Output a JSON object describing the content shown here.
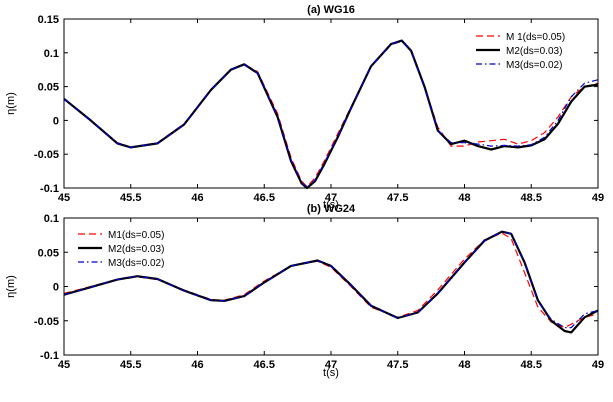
{
  "caption": "",
  "chart_data": [
    {
      "type": "line",
      "title": "(a) WG16",
      "xlabel": "t(s)",
      "ylabel": "η(m)",
      "xlim": [
        45,
        49
      ],
      "ylim": [
        -0.1,
        0.15
      ],
      "xticks": [
        45,
        45.5,
        46,
        46.5,
        47,
        47.5,
        48,
        48.5,
        49
      ],
      "xtick_labels": [
        "45",
        "45.5",
        "46",
        "46.5",
        "47",
        "47.5",
        "48",
        "48.5",
        "49"
      ],
      "yticks": [
        -0.1,
        -0.05,
        0,
        0.05,
        0.1,
        0.15
      ],
      "ytick_labels": [
        "-0.1",
        "-0.05",
        "0",
        "0.05",
        "0.1",
        "0.15"
      ],
      "legend_position": "top-right",
      "series": [
        {
          "name": "M 1(ds=0.05)",
          "color": "#ff0000",
          "dash": "7,4",
          "width": 1.2,
          "x": [
            45.0,
            45.2,
            45.4,
            45.5,
            45.7,
            45.9,
            46.1,
            46.25,
            46.35,
            46.45,
            46.6,
            46.7,
            46.78,
            46.82,
            46.88,
            46.95,
            47.05,
            47.15,
            47.3,
            47.45,
            47.53,
            47.6,
            47.7,
            47.8,
            47.9,
            48.0,
            48.1,
            48.2,
            48.3,
            48.4,
            48.5,
            48.6,
            48.7,
            48.8,
            48.9,
            49.0
          ],
          "y": [
            0.032,
            0.0,
            -0.033,
            -0.04,
            -0.033,
            -0.005,
            0.045,
            0.075,
            0.083,
            0.072,
            0.01,
            -0.055,
            -0.09,
            -0.098,
            -0.085,
            -0.06,
            -0.02,
            0.02,
            0.08,
            0.112,
            0.117,
            0.105,
            0.05,
            -0.01,
            -0.038,
            -0.038,
            -0.032,
            -0.03,
            -0.028,
            -0.035,
            -0.03,
            -0.018,
            0.005,
            0.035,
            0.05,
            0.055
          ]
        },
        {
          "name": "M2(ds=0.03)",
          "color": "#000000",
          "dash": "",
          "width": 2.2,
          "x": [
            45.0,
            45.2,
            45.4,
            45.5,
            45.7,
            45.9,
            46.1,
            46.25,
            46.35,
            46.45,
            46.6,
            46.7,
            46.78,
            46.82,
            46.88,
            46.95,
            47.05,
            47.15,
            47.3,
            47.45,
            47.53,
            47.6,
            47.7,
            47.8,
            47.9,
            48.0,
            48.1,
            48.2,
            48.3,
            48.4,
            48.5,
            48.6,
            48.7,
            48.8,
            48.9,
            49.0
          ],
          "y": [
            0.032,
            0.0,
            -0.034,
            -0.04,
            -0.034,
            -0.006,
            0.045,
            0.075,
            0.083,
            0.07,
            0.005,
            -0.06,
            -0.093,
            -0.1,
            -0.09,
            -0.065,
            -0.025,
            0.018,
            0.08,
            0.113,
            0.118,
            0.103,
            0.05,
            -0.015,
            -0.035,
            -0.03,
            -0.038,
            -0.043,
            -0.038,
            -0.04,
            -0.037,
            -0.028,
            -0.005,
            0.028,
            0.05,
            0.053
          ]
        },
        {
          "name": "M3(ds=0.02)",
          "color": "#0000cc",
          "dash": "6,3,1.5,3",
          "width": 1.2,
          "x": [
            45.0,
            45.2,
            45.4,
            45.5,
            45.7,
            45.9,
            46.1,
            46.25,
            46.35,
            46.45,
            46.6,
            46.7,
            46.78,
            46.82,
            46.88,
            46.95,
            47.05,
            47.15,
            47.3,
            47.45,
            47.53,
            47.6,
            47.7,
            47.8,
            47.9,
            48.0,
            48.1,
            48.2,
            48.3,
            48.4,
            48.5,
            48.6,
            48.7,
            48.8,
            48.9,
            49.0
          ],
          "y": [
            0.032,
            0.0,
            -0.034,
            -0.04,
            -0.034,
            -0.006,
            0.045,
            0.075,
            0.083,
            0.07,
            0.006,
            -0.058,
            -0.092,
            -0.099,
            -0.088,
            -0.063,
            -0.024,
            0.018,
            0.08,
            0.113,
            0.118,
            0.103,
            0.048,
            -0.015,
            -0.033,
            -0.033,
            -0.035,
            -0.038,
            -0.037,
            -0.038,
            -0.036,
            -0.025,
            0.0,
            0.035,
            0.055,
            0.06
          ]
        }
      ]
    },
    {
      "type": "line",
      "title": "(b) WG24",
      "xlabel": "t(s)",
      "ylabel": "η(m)",
      "xlim": [
        45,
        49
      ],
      "ylim": [
        -0.1,
        0.1
      ],
      "xticks": [
        45,
        45.5,
        46,
        46.5,
        47,
        47.5,
        48,
        48.5,
        49
      ],
      "xtick_labels": [
        "45",
        "45.5",
        "46",
        "46.5",
        "47",
        "47.5",
        "48",
        "48.5",
        "49"
      ],
      "yticks": [
        -0.1,
        -0.05,
        0,
        0.05,
        0.1
      ],
      "ytick_labels": [
        "-0.1",
        "-0.05",
        "0",
        "0.05",
        "0.1"
      ],
      "legend_position": "top-left",
      "series": [
        {
          "name": "M1(ds=0.05)",
          "color": "#ff0000",
          "dash": "7,4",
          "width": 1.2,
          "x": [
            45.0,
            45.2,
            45.4,
            45.55,
            45.7,
            45.9,
            46.1,
            46.2,
            46.35,
            46.5,
            46.7,
            46.9,
            47.0,
            47.15,
            47.3,
            47.5,
            47.65,
            47.8,
            48.0,
            48.15,
            48.28,
            48.35,
            48.45,
            48.55,
            48.65,
            48.75,
            48.8,
            48.9,
            49.0
          ],
          "y": [
            -0.01,
            0.0,
            0.01,
            0.014,
            0.01,
            -0.005,
            -0.019,
            -0.02,
            -0.012,
            0.008,
            0.03,
            0.037,
            0.028,
            0.0,
            -0.03,
            -0.045,
            -0.035,
            -0.005,
            0.04,
            0.068,
            0.078,
            0.07,
            0.02,
            -0.03,
            -0.052,
            -0.06,
            -0.055,
            -0.045,
            -0.04
          ]
        },
        {
          "name": "M2(ds=0.03)",
          "color": "#000000",
          "dash": "",
          "width": 2.2,
          "x": [
            45.0,
            45.2,
            45.4,
            45.55,
            45.7,
            45.9,
            46.1,
            46.2,
            46.35,
            46.5,
            46.7,
            46.9,
            47.0,
            47.15,
            47.3,
            47.5,
            47.65,
            47.8,
            48.0,
            48.15,
            48.28,
            48.35,
            48.45,
            48.55,
            48.65,
            48.75,
            48.8,
            48.9,
            49.0
          ],
          "y": [
            -0.012,
            -0.001,
            0.01,
            0.015,
            0.011,
            -0.006,
            -0.02,
            -0.021,
            -0.014,
            0.006,
            0.03,
            0.038,
            0.03,
            0.002,
            -0.028,
            -0.046,
            -0.038,
            -0.01,
            0.035,
            0.067,
            0.08,
            0.077,
            0.035,
            -0.02,
            -0.05,
            -0.065,
            -0.067,
            -0.045,
            -0.035
          ]
        },
        {
          "name": "M3(ds=0.02)",
          "color": "#0000cc",
          "dash": "6,3,1.5,3",
          "width": 1.2,
          "x": [
            45.0,
            45.2,
            45.4,
            45.55,
            45.7,
            45.9,
            46.1,
            46.2,
            46.35,
            46.5,
            46.7,
            46.9,
            47.0,
            47.15,
            47.3,
            47.5,
            47.65,
            47.8,
            48.0,
            48.15,
            48.28,
            48.35,
            48.45,
            48.55,
            48.65,
            48.75,
            48.8,
            48.9,
            49.0
          ],
          "y": [
            -0.012,
            -0.001,
            0.01,
            0.015,
            0.011,
            -0.006,
            -0.02,
            -0.021,
            -0.014,
            0.006,
            0.03,
            0.038,
            0.03,
            0.002,
            -0.028,
            -0.046,
            -0.038,
            -0.01,
            0.035,
            0.067,
            0.08,
            0.077,
            0.035,
            -0.022,
            -0.048,
            -0.06,
            -0.06,
            -0.04,
            -0.035
          ]
        }
      ]
    }
  ]
}
